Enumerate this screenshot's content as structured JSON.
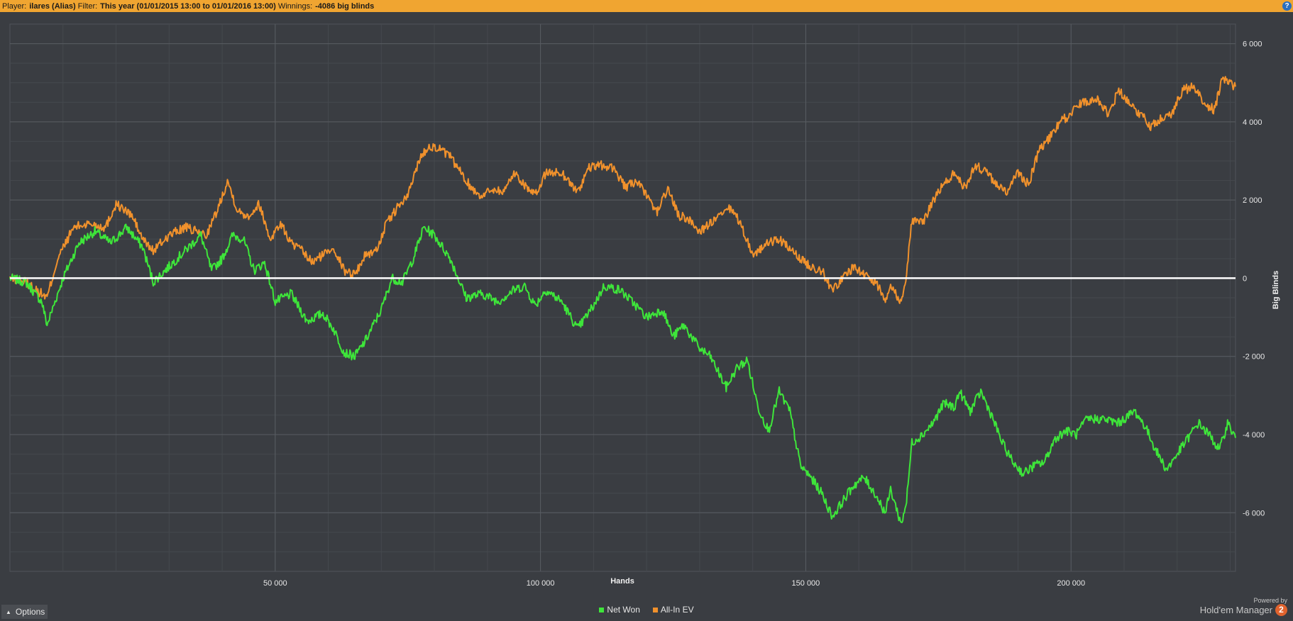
{
  "header": {
    "player_label": "Player:",
    "player_value": "ilares (Alias)",
    "filter_label": "Filter:",
    "filter_value": "This year (01/01/2015 13:00 to 01/01/2016 13:00)",
    "winnings_label": "Winnings:",
    "winnings_value": "-4086 big blinds",
    "help_icon": "?"
  },
  "options_label": "Options",
  "branding": {
    "powered_by": "Powered by",
    "product": "Hold'em Manager",
    "logo_text": "2"
  },
  "colors": {
    "background": "#3a3d42",
    "grid": "#50545a",
    "net_won": "#3ee53a",
    "all_in_ev": "#f0912c",
    "zero_line": "#ffffff",
    "header": "#f0a531"
  },
  "chart_data": {
    "type": "line",
    "xlabel": "Hands",
    "ylabel": "Big Blinds",
    "xlim": [
      0,
      231000
    ],
    "ylim": [
      -7500,
      6500
    ],
    "x_ticks": [
      50000,
      100000,
      150000,
      200000
    ],
    "x_tick_labels": [
      "50 000",
      "100 000",
      "150 000",
      "200 000"
    ],
    "y_ticks": [
      6000,
      4000,
      2000,
      0,
      -2000,
      -4000,
      -6000
    ],
    "y_tick_labels": [
      "6 000",
      "4 000",
      "2 000",
      "0",
      "-2 000",
      "-4 000",
      "-6 000"
    ],
    "grid": true,
    "y_axis_position": "right",
    "legend_position": "bottom-center",
    "series": [
      {
        "name": "Net Won",
        "color": "#3ee53a",
        "points": [
          [
            0,
            0
          ],
          [
            3000,
            -100
          ],
          [
            6000,
            -600
          ],
          [
            7000,
            -1200
          ],
          [
            10000,
            0
          ],
          [
            13000,
            900
          ],
          [
            16000,
            1200
          ],
          [
            19000,
            900
          ],
          [
            22000,
            1300
          ],
          [
            25000,
            800
          ],
          [
            27000,
            -100
          ],
          [
            30000,
            300
          ],
          [
            33000,
            700
          ],
          [
            36000,
            1100
          ],
          [
            38000,
            200
          ],
          [
            40000,
            500
          ],
          [
            42000,
            1100
          ],
          [
            44000,
            1000
          ],
          [
            46000,
            200
          ],
          [
            48000,
            400
          ],
          [
            50000,
            -600
          ],
          [
            53000,
            -400
          ],
          [
            56000,
            -1100
          ],
          [
            59000,
            -900
          ],
          [
            61000,
            -1300
          ],
          [
            63000,
            -1900
          ],
          [
            65000,
            -2000
          ],
          [
            67000,
            -1600
          ],
          [
            70000,
            -800
          ],
          [
            72000,
            0
          ],
          [
            74000,
            -100
          ],
          [
            76000,
            500
          ],
          [
            78000,
            1300
          ],
          [
            80000,
            1100
          ],
          [
            83000,
            500
          ],
          [
            86000,
            -500
          ],
          [
            89000,
            -400
          ],
          [
            92000,
            -600
          ],
          [
            95000,
            -300
          ],
          [
            97000,
            -200
          ],
          [
            99000,
            -700
          ],
          [
            101000,
            -300
          ],
          [
            104000,
            -600
          ],
          [
            107000,
            -1300
          ],
          [
            110000,
            -700
          ],
          [
            112000,
            -200
          ],
          [
            115000,
            -300
          ],
          [
            118000,
            -700
          ],
          [
            120000,
            -1000
          ],
          [
            123000,
            -800
          ],
          [
            125000,
            -1500
          ],
          [
            127000,
            -1200
          ],
          [
            130000,
            -1800
          ],
          [
            132000,
            -2000
          ],
          [
            135000,
            -2800
          ],
          [
            137000,
            -2300
          ],
          [
            139000,
            -2100
          ],
          [
            141000,
            -3300
          ],
          [
            143000,
            -3900
          ],
          [
            145000,
            -2900
          ],
          [
            147000,
            -3400
          ],
          [
            149000,
            -4800
          ],
          [
            151000,
            -5100
          ],
          [
            153000,
            -5500
          ],
          [
            155000,
            -6100
          ],
          [
            157000,
            -5700
          ],
          [
            159000,
            -5300
          ],
          [
            161000,
            -5100
          ],
          [
            163000,
            -5500
          ],
          [
            165000,
            -6000
          ],
          [
            166000,
            -5400
          ],
          [
            168000,
            -6300
          ],
          [
            169000,
            -5700
          ],
          [
            170000,
            -4200
          ],
          [
            172000,
            -4000
          ],
          [
            174000,
            -3700
          ],
          [
            176000,
            -3200
          ],
          [
            178000,
            -3300
          ],
          [
            179000,
            -2900
          ],
          [
            181000,
            -3400
          ],
          [
            183000,
            -2900
          ],
          [
            185000,
            -3500
          ],
          [
            187000,
            -4200
          ],
          [
            189000,
            -4700
          ],
          [
            191000,
            -5000
          ],
          [
            193000,
            -4800
          ],
          [
            195000,
            -4700
          ],
          [
            197000,
            -4100
          ],
          [
            199000,
            -3900
          ],
          [
            201000,
            -4000
          ],
          [
            203000,
            -3600
          ],
          [
            206000,
            -3600
          ],
          [
            209000,
            -3700
          ],
          [
            212000,
            -3400
          ],
          [
            214000,
            -3800
          ],
          [
            216000,
            -4400
          ],
          [
            218000,
            -4900
          ],
          [
            220000,
            -4500
          ],
          [
            222000,
            -4100
          ],
          [
            224000,
            -3700
          ],
          [
            226000,
            -4000
          ],
          [
            228000,
            -4400
          ],
          [
            229500,
            -3700
          ],
          [
            231000,
            -4086
          ]
        ]
      },
      {
        "name": "All-In EV",
        "color": "#f0912c",
        "points": [
          [
            0,
            0
          ],
          [
            3000,
            -100
          ],
          [
            6000,
            -400
          ],
          [
            7000,
            -500
          ],
          [
            9000,
            500
          ],
          [
            12000,
            1300
          ],
          [
            15000,
            1400
          ],
          [
            18000,
            1300
          ],
          [
            20000,
            1900
          ],
          [
            23000,
            1600
          ],
          [
            25000,
            1000
          ],
          [
            27000,
            700
          ],
          [
            30000,
            1100
          ],
          [
            33000,
            1300
          ],
          [
            35000,
            1200
          ],
          [
            37000,
            1100
          ],
          [
            39000,
            1700
          ],
          [
            41000,
            2500
          ],
          [
            43000,
            1700
          ],
          [
            45000,
            1600
          ],
          [
            47000,
            1900
          ],
          [
            49000,
            1000
          ],
          [
            51000,
            1400
          ],
          [
            53000,
            900
          ],
          [
            55000,
            700
          ],
          [
            57000,
            400
          ],
          [
            59000,
            600
          ],
          [
            61000,
            800
          ],
          [
            63000,
            200
          ],
          [
            65000,
            100
          ],
          [
            67000,
            600
          ],
          [
            69000,
            700
          ],
          [
            71000,
            1400
          ],
          [
            73000,
            1800
          ],
          [
            75000,
            2100
          ],
          [
            77000,
            3000
          ],
          [
            79000,
            3400
          ],
          [
            81000,
            3300
          ],
          [
            83000,
            3100
          ],
          [
            85000,
            2700
          ],
          [
            87000,
            2300
          ],
          [
            89000,
            2100
          ],
          [
            91000,
            2300
          ],
          [
            93000,
            2200
          ],
          [
            95000,
            2700
          ],
          [
            97000,
            2400
          ],
          [
            99000,
            2100
          ],
          [
            101000,
            2700
          ],
          [
            104000,
            2700
          ],
          [
            107000,
            2200
          ],
          [
            109000,
            2800
          ],
          [
            111000,
            2900
          ],
          [
            114000,
            2800
          ],
          [
            116000,
            2300
          ],
          [
            118000,
            2500
          ],
          [
            120000,
            2100
          ],
          [
            122000,
            1700
          ],
          [
            124000,
            2300
          ],
          [
            126000,
            1600
          ],
          [
            128000,
            1500
          ],
          [
            130000,
            1200
          ],
          [
            133000,
            1500
          ],
          [
            136000,
            1800
          ],
          [
            138000,
            1300
          ],
          [
            140000,
            600
          ],
          [
            143000,
            900
          ],
          [
            145000,
            1000
          ],
          [
            148000,
            600
          ],
          [
            151000,
            300
          ],
          [
            153000,
            200
          ],
          [
            155000,
            -300
          ],
          [
            157000,
            0
          ],
          [
            159000,
            300
          ],
          [
            161000,
            100
          ],
          [
            163000,
            -100
          ],
          [
            165000,
            -500
          ],
          [
            166000,
            -200
          ],
          [
            168000,
            -600
          ],
          [
            169000,
            100
          ],
          [
            170000,
            1500
          ],
          [
            172000,
            1400
          ],
          [
            174000,
            2000
          ],
          [
            176000,
            2400
          ],
          [
            178000,
            2700
          ],
          [
            180000,
            2300
          ],
          [
            182000,
            2900
          ],
          [
            184000,
            2700
          ],
          [
            186000,
            2400
          ],
          [
            188000,
            2200
          ],
          [
            190000,
            2700
          ],
          [
            192000,
            2400
          ],
          [
            194000,
            3300
          ],
          [
            196000,
            3600
          ],
          [
            198000,
            4000
          ],
          [
            200000,
            4200
          ],
          [
            202000,
            4500
          ],
          [
            205000,
            4600
          ],
          [
            207000,
            4200
          ],
          [
            209000,
            4800
          ],
          [
            211000,
            4500
          ],
          [
            213000,
            4200
          ],
          [
            215000,
            3900
          ],
          [
            217000,
            4100
          ],
          [
            219000,
            4200
          ],
          [
            221000,
            4800
          ],
          [
            223000,
            4900
          ],
          [
            225000,
            4500
          ],
          [
            227000,
            4300
          ],
          [
            228500,
            5100
          ],
          [
            231000,
            4900
          ]
        ]
      }
    ]
  }
}
